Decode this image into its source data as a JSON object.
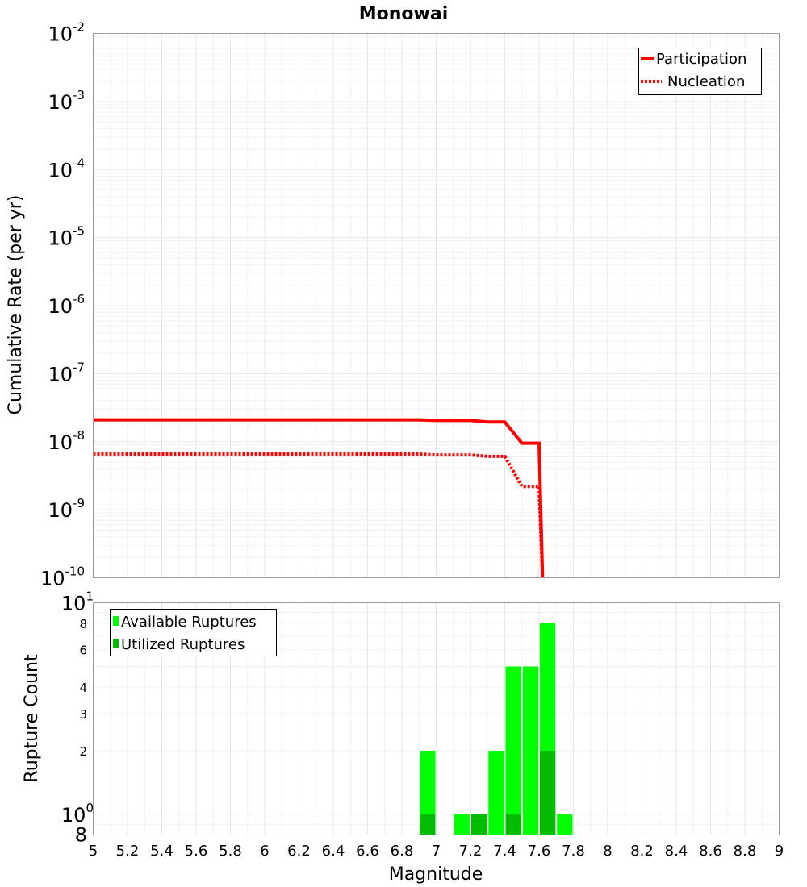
{
  "chart_data": [
    {
      "type": "line",
      "title": "Monowai",
      "ylabel": "Cumulative Rate (per yr)",
      "xlabel": "",
      "xlim": [
        5,
        9
      ],
      "ylim": [
        1e-10,
        0.01
      ],
      "yscale": "log",
      "y_major_ticks": [
        {
          "base": "10",
          "exp": "-10",
          "value": 1e-10
        },
        {
          "base": "10",
          "exp": "-9",
          "value": 1e-09
        },
        {
          "base": "10",
          "exp": "-8",
          "value": 1e-08
        },
        {
          "base": "10",
          "exp": "-7",
          "value": 1e-07
        },
        {
          "base": "10",
          "exp": "-6",
          "value": 1e-06
        },
        {
          "base": "10",
          "exp": "-5",
          "value": 1e-05
        },
        {
          "base": "10",
          "exp": "-4",
          "value": 0.0001
        },
        {
          "base": "10",
          "exp": "-3",
          "value": 0.001
        },
        {
          "base": "10",
          "exp": "-2",
          "value": 0.01
        }
      ],
      "legend_position": "top-right",
      "series": [
        {
          "name": "Participation",
          "style": "solid",
          "color": "#ff0000",
          "x": [
            5.0,
            6.9,
            7.0,
            7.2,
            7.3,
            7.4,
            7.5,
            7.6,
            7.62
          ],
          "y": [
            2.1e-08,
            2.1e-08,
            2.05e-08,
            2.05e-08,
            1.95e-08,
            1.95e-08,
            9.5e-09,
            9.5e-09,
            1e-10
          ]
        },
        {
          "name": "Nucleation",
          "style": "dotted",
          "color": "#ff0000",
          "x": [
            5.0,
            6.9,
            7.0,
            7.2,
            7.3,
            7.4,
            7.5,
            7.6,
            7.62
          ],
          "y": [
            6.6e-09,
            6.6e-09,
            6.4e-09,
            6.4e-09,
            6.1e-09,
            6.1e-09,
            2.2e-09,
            2.2e-09,
            1e-10
          ]
        }
      ]
    },
    {
      "type": "bar",
      "xlabel": "Magnitude",
      "ylabel": "Rupture Count",
      "xlim": [
        5,
        9
      ],
      "ylim": [
        0.8,
        10
      ],
      "yscale": "log",
      "x_tick_labels": [
        "5",
        "5.2",
        "5.4",
        "5.6",
        "5.8",
        "6",
        "6.2",
        "6.4",
        "6.6",
        "6.8",
        "7",
        "7.2",
        "7.4",
        "7.6",
        "7.8",
        "8",
        "8.2",
        "8.4",
        "8.6",
        "8.8",
        "9"
      ],
      "y_major_ticks": [
        {
          "base": "10",
          "exp": "0",
          "value": 1
        },
        {
          "base": "10",
          "exp": "1",
          "value": 10
        }
      ],
      "y_minor_ticks": [
        {
          "label": "8",
          "value": 0.8
        },
        {
          "label": "2",
          "value": 2
        },
        {
          "label": "3",
          "value": 3
        },
        {
          "label": "4",
          "value": 4
        },
        {
          "label": "6",
          "value": 6
        },
        {
          "label": "8",
          "value": 8
        }
      ],
      "legend_position": "top-left",
      "bin_width": 0.1,
      "series": [
        {
          "name": "Available Ruptures",
          "color": "#00ff00",
          "x": [
            6.95,
            7.15,
            7.25,
            7.35,
            7.45,
            7.55,
            7.65,
            7.75
          ],
          "values": [
            2,
            1,
            1,
            2,
            5,
            5,
            8,
            1
          ]
        },
        {
          "name": "Utilized Ruptures",
          "color": "#00bb00",
          "x": [
            6.95,
            7.25,
            7.45,
            7.65
          ],
          "values": [
            1,
            1,
            1,
            2
          ]
        }
      ]
    }
  ]
}
